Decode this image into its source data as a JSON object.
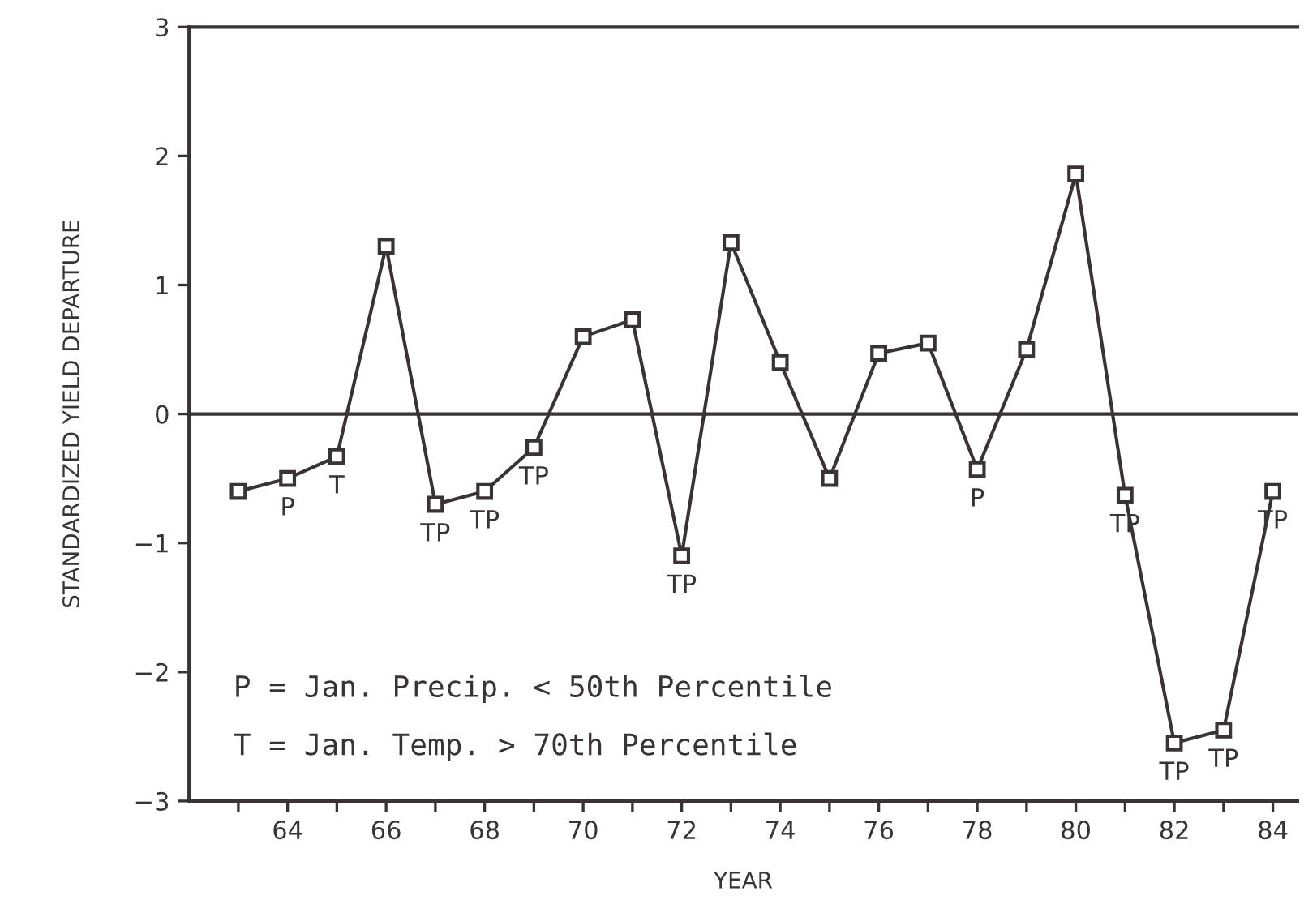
{
  "chart_data": {
    "type": "line",
    "xlabel": "YEAR",
    "ylabel": "STANDARDIZED YIELD DEPARTURE",
    "x": [
      63,
      64,
      65,
      66,
      67,
      68,
      69,
      70,
      71,
      72,
      73,
      74,
      75,
      76,
      77,
      78,
      79,
      80,
      81,
      82,
      83,
      84
    ],
    "series": [
      {
        "color": "#3a3334",
        "values": [
          -0.6,
          -0.5,
          -0.33,
          1.3,
          -0.7,
          -0.6,
          -0.26,
          0.6,
          0.73,
          -1.1,
          1.33,
          0.4,
          -0.5,
          0.47,
          0.55,
          -0.43,
          0.5,
          1.86,
          -0.63,
          -2.55,
          -2.45,
          -0.6
        ]
      }
    ],
    "marker": "square",
    "line_style": "solid",
    "grid": false,
    "legend": false,
    "xlim": [
      62,
      84.5
    ],
    "ylim": [
      -3,
      3
    ],
    "xticks": [
      {
        "value": 63,
        "label": null
      },
      64,
      {
        "value": 65,
        "label": null
      },
      66,
      {
        "value": 67,
        "label": null
      },
      68,
      {
        "value": 69,
        "label": null
      },
      70,
      {
        "value": 71,
        "label": null
      },
      72,
      {
        "value": 73,
        "label": null
      },
      74,
      {
        "value": 75,
        "label": null
      },
      76,
      {
        "value": 77,
        "label": null
      },
      78,
      {
        "value": 79,
        "label": null
      },
      80,
      {
        "value": 81,
        "label": null
      },
      82,
      {
        "value": 83,
        "label": null
      },
      84
    ],
    "yticks": [
      -3,
      -2,
      -1,
      0,
      1,
      2,
      3
    ],
    "ref_lines": [
      {
        "axis": "y",
        "value": 0,
        "color": "#3a3334"
      }
    ],
    "annotations": [
      {
        "text": "P",
        "x": 64,
        "y": -0.5
      },
      {
        "text": "T",
        "x": 65,
        "y": -0.33
      },
      {
        "text": "TP",
        "x": 67,
        "y": -0.7
      },
      {
        "text": "TP",
        "x": 68,
        "y": -0.6
      },
      {
        "text": "TP",
        "x": 69,
        "y": -0.26
      },
      {
        "text": "TP",
        "x": 72,
        "y": -1.1
      },
      {
        "text": "P",
        "x": 78,
        "y": -0.43
      },
      {
        "text": "TP",
        "x": 81,
        "y": -0.63
      },
      {
        "text": "TP",
        "x": 82,
        "y": -2.55
      },
      {
        "text": "TP",
        "x": 83,
        "y": -2.45
      },
      {
        "text": "TP",
        "x": 84,
        "y": -0.6
      },
      "P = Jan. Precip. < 50th Percentile",
      "T = Jan. Temp. > 70th Percentile"
    ]
  }
}
